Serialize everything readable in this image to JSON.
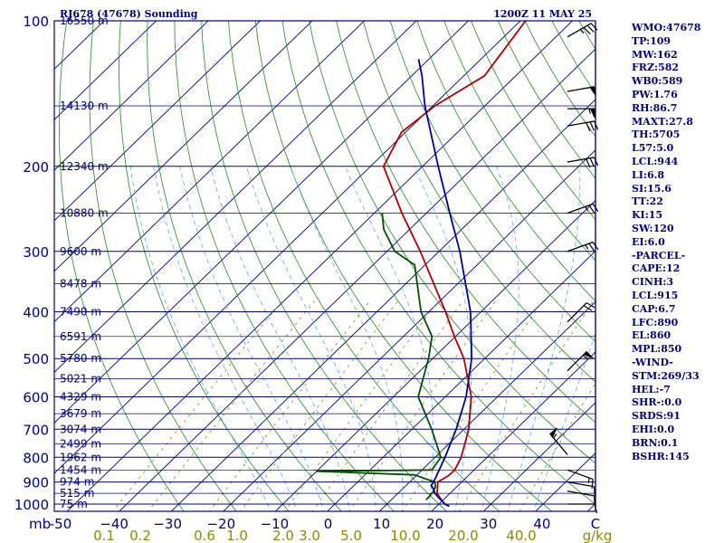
{
  "chart_data": {
    "type": "line",
    "title_left": "RJ678 (47678) Sounding",
    "title_right": "1200Z 11 MAY 25",
    "y_axis_unit": "mb",
    "x_axis_unit": "g/kg",
    "pressure_axis": [
      100,
      200,
      300,
      400,
      500,
      600,
      700,
      800,
      900,
      1000
    ],
    "temperature_ticks": [
      "-50",
      "−40",
      "−30",
      "−20",
      "−10",
      "0",
      "10",
      "20",
      "30",
      "40",
      "C"
    ],
    "mixing_ratio_ticks": [
      "0.1",
      "0.2",
      "0.6",
      "1.0",
      "2.0",
      "3.0",
      "5.0",
      "10.0",
      "20.0",
      "40.0",
      "g/kg"
    ],
    "height_labels": [
      {
        "p": 100,
        "label": "16550 m"
      },
      {
        "p": 150,
        "label": "14130 m"
      },
      {
        "p": 200,
        "label": "12340 m"
      },
      {
        "p": 250,
        "label": "10880 m"
      },
      {
        "p": 300,
        "label": "9600 m"
      },
      {
        "p": 350,
        "label": "8478 m"
      },
      {
        "p": 400,
        "label": "7490 m"
      },
      {
        "p": 450,
        "label": "6591 m"
      },
      {
        "p": 500,
        "label": "5780 m"
      },
      {
        "p": 550,
        "label": "5021 m"
      },
      {
        "p": 600,
        "label": "4329 m"
      },
      {
        "p": 650,
        "label": "3679 m"
      },
      {
        "p": 700,
        "label": "3074 m"
      },
      {
        "p": 750,
        "label": "2499 m"
      },
      {
        "p": 800,
        "label": "1962 m"
      },
      {
        "p": 850,
        "label": "1454 m"
      },
      {
        "p": 900,
        "label": "974 m"
      },
      {
        "p": 950,
        "label": "515 m"
      },
      {
        "p": 1000,
        "label": "75 m"
      }
    ],
    "series": [
      {
        "color": "#b00000",
        "points": [
          [
            1010,
            22.4
          ],
          [
            1000,
            21.1
          ],
          [
            975,
            19.3
          ],
          [
            950,
            17.5
          ],
          [
            925,
            16.5
          ],
          [
            900,
            15.4
          ],
          [
            875,
            16.2
          ],
          [
            850,
            16.3
          ],
          [
            800,
            15.0
          ],
          [
            700,
            10.9
          ],
          [
            600,
            5.0
          ],
          [
            500,
            -4.0
          ],
          [
            450,
            -10.2
          ],
          [
            400,
            -16.8
          ],
          [
            300,
            -33.6
          ],
          [
            250,
            -44.7
          ],
          [
            200,
            -57.5
          ],
          [
            170,
            -60.8
          ],
          [
            150,
            -59.6
          ],
          [
            130,
            -56.0
          ],
          [
            100,
            -59.0
          ]
        ]
      },
      {
        "color": "#005000",
        "points": [
          [
            980,
            16.7
          ],
          [
            960,
            16.6
          ],
          [
            940,
            16.4
          ],
          [
            920,
            15.9
          ],
          [
            900,
            14.8
          ],
          [
            870,
            9.5
          ],
          [
            855,
            -10.0
          ],
          [
            850,
            11.9
          ],
          [
            800,
            11.1
          ],
          [
            700,
            3.8
          ],
          [
            600,
            -5.2
          ],
          [
            500,
            -10.8
          ],
          [
            450,
            -14.5
          ],
          [
            400,
            -21.5
          ],
          [
            320,
            -32.0
          ],
          [
            300,
            -38.5
          ],
          [
            270,
            -45.0
          ],
          [
            250,
            -48.5
          ]
        ]
      },
      {
        "color": "#000090",
        "points": [
          [
            1010,
            22.4
          ],
          [
            1000,
            21.2
          ],
          [
            975,
            19.1
          ],
          [
            950,
            17.1
          ],
          [
            925,
            15.6
          ],
          [
            915,
            14.8
          ],
          [
            900,
            14.6
          ],
          [
            850,
            13.3
          ],
          [
            800,
            11.9
          ],
          [
            700,
            8.5
          ],
          [
            600,
            4.0
          ],
          [
            500,
            -2.5
          ],
          [
            400,
            -12.0
          ],
          [
            300,
            -26.0
          ],
          [
            250,
            -35.5
          ],
          [
            200,
            -47.0
          ],
          [
            150,
            -61.5
          ],
          [
            130,
            -68.0
          ],
          [
            120,
            -72.0
          ]
        ]
      }
    ],
    "wind_barbs": [
      {
        "p": 108,
        "dir": 60,
        "spd": 35
      },
      {
        "p": 140,
        "dir": 80,
        "spd": 50
      },
      {
        "p": 152,
        "dir": 90,
        "spd": 55
      },
      {
        "p": 165,
        "dir": 80,
        "spd": 30
      },
      {
        "p": 196,
        "dir": 80,
        "spd": 30
      },
      {
        "p": 250,
        "dir": 70,
        "spd": 25
      },
      {
        "p": 300,
        "dir": 70,
        "spd": 25
      },
      {
        "p": 420,
        "dir": 45,
        "spd": 20
      },
      {
        "p": 530,
        "dir": 45,
        "spd": 55
      },
      {
        "p": 790,
        "dir": 320,
        "spd": 55
      },
      {
        "p": 850,
        "dir": 110,
        "spd": 15
      },
      {
        "p": 900,
        "dir": 100,
        "spd": 10
      },
      {
        "p": 940,
        "dir": 100,
        "spd": 10
      },
      {
        "p": 1000,
        "dir": 90,
        "spd": 10
      }
    ]
  },
  "indices": [
    "WMO:47678",
    "TP:109",
    "MW:162",
    "FRZ:582",
    "WB0:589",
    "PW:1.76",
    "RH:86.7",
    "MAXT:27.8",
    "TH:5705",
    "L57:5.0",
    "LCL:944",
    "LI:6.8",
    "SI:15.6",
    "TT:22",
    "KI:15",
    "SW:120",
    "EI:6.0",
    "-PARCEL-",
    "CAPE:12",
    "CINH:3",
    "LCL:915",
    "CAP:6.7",
    "LFC:890",
    "EL:860",
    "MPL:850",
    "-WIND-",
    "STM:269/33",
    "HEL:-7",
    "SHR-:0.0",
    "SRDS:91",
    "EHI:0.0",
    "BRN:0.1",
    "BSHR:145"
  ],
  "colors": {
    "frame": "#000080",
    "dry_adiabat": "#228b22",
    "moist_adiabat": "#55aaee",
    "mixing_ratio": "#8b8b00",
    "wind_barb": "#000000"
  }
}
